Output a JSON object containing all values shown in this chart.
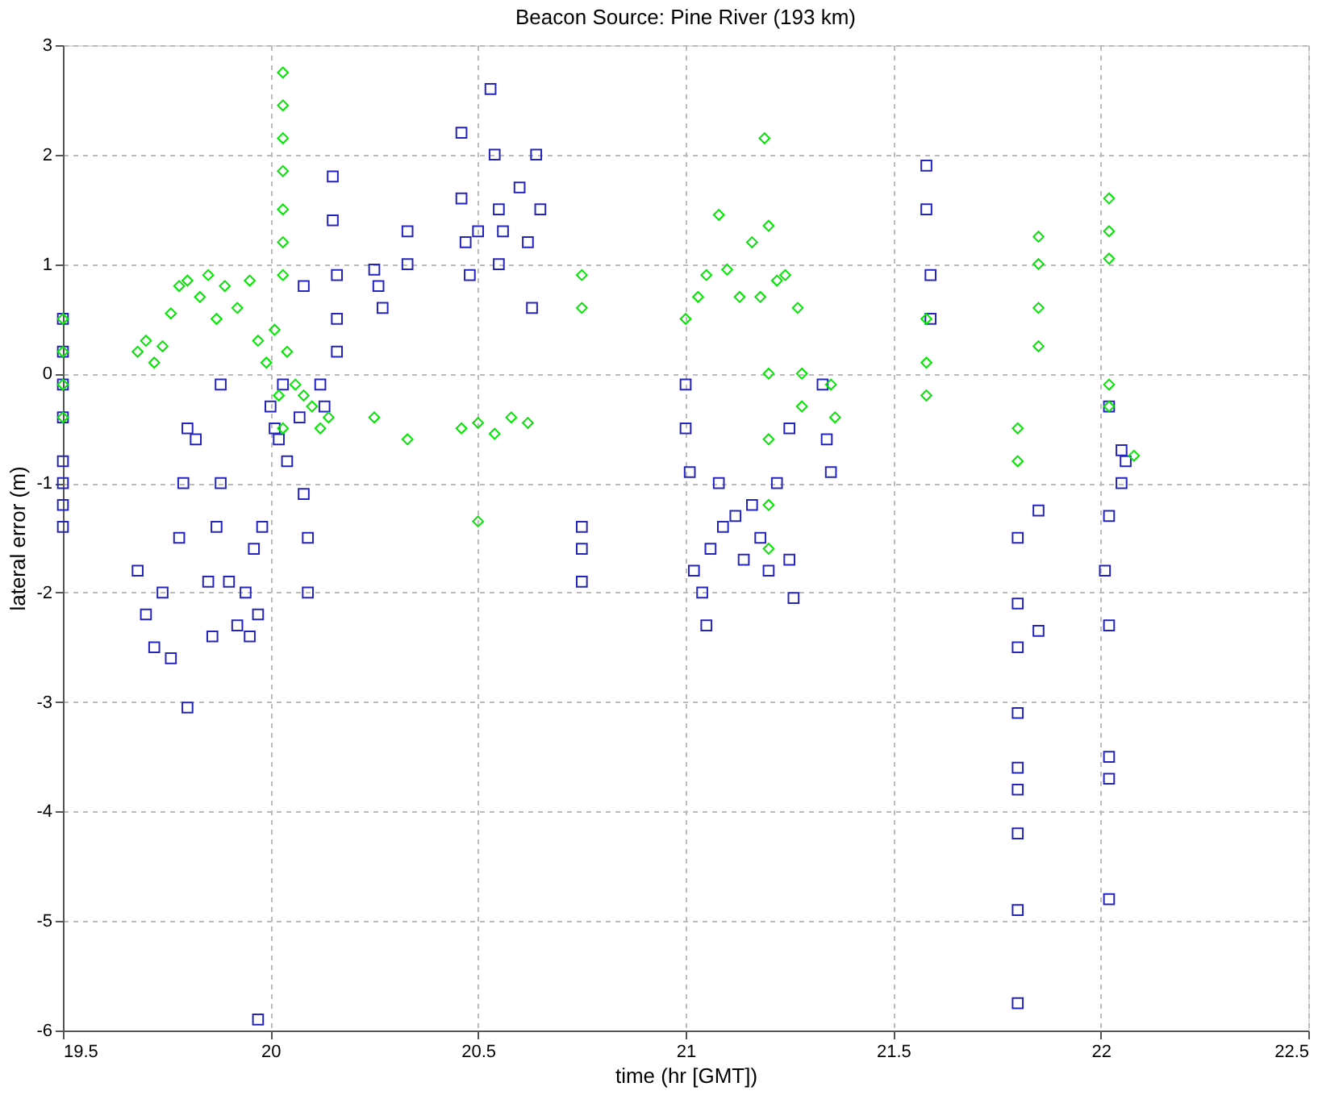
{
  "chart_data": {
    "type": "scatter",
    "title": "Beacon Source: Pine River (193 km)",
    "xlabel": "time (hr [GMT])",
    "ylabel": "lateral error (m)",
    "xlim": [
      19.5,
      22.5
    ],
    "xticks": [
      19.5,
      20,
      20.5,
      21,
      21.5,
      22,
      22.5
    ],
    "ylim": [
      -6,
      3
    ],
    "yticks": [
      -6,
      -5,
      -4,
      -3,
      -2,
      -1,
      0,
      1,
      2,
      3
    ],
    "grid": true,
    "series": [
      {
        "color": "#2323c0",
        "marker": "square",
        "x": [
          19.5,
          19.5,
          19.5,
          19.5,
          19.5,
          19.5,
          19.5,
          19.5,
          19.68,
          19.7,
          19.72,
          19.74,
          19.76,
          19.78,
          19.79,
          19.8,
          19.82,
          19.8,
          19.85,
          19.86,
          19.88,
          19.88,
          19.87,
          19.9,
          19.92,
          19.94,
          19.95,
          19.96,
          19.97,
          19.98,
          19.97,
          20.0,
          20.02,
          20.03,
          20.04,
          20.01,
          20.08,
          20.08,
          20.09,
          20.09,
          20.07,
          20.12,
          20.13,
          20.15,
          20.15,
          20.16,
          20.16,
          20.16,
          20.25,
          20.26,
          20.27,
          20.33,
          20.33,
          20.46,
          20.46,
          20.47,
          20.48,
          20.5,
          20.53,
          20.54,
          20.55,
          20.55,
          20.56,
          20.6,
          20.62,
          20.63,
          20.64,
          20.65,
          20.75,
          20.75,
          20.75,
          21.0,
          21.0,
          21.01,
          21.02,
          21.04,
          21.05,
          21.06,
          21.08,
          21.09,
          21.12,
          21.14,
          21.16,
          21.18,
          21.2,
          21.22,
          21.25,
          21.25,
          21.26,
          21.33,
          21.34,
          21.35,
          21.58,
          21.58,
          21.59,
          21.59,
          21.8,
          21.8,
          21.8,
          21.8,
          21.8,
          21.8,
          21.8,
          21.8,
          21.8,
          21.85,
          21.85,
          22.02,
          22.02,
          22.01,
          22.02,
          22.02,
          22.02,
          22.02,
          22.05,
          22.05,
          22.06
        ],
        "values": [
          0.5,
          0.2,
          -0.1,
          -0.4,
          -0.8,
          -1.0,
          -1.2,
          -1.4,
          -1.8,
          -2.2,
          -2.5,
          -2.0,
          -2.6,
          -1.5,
          -1.0,
          -0.5,
          -0.6,
          -3.05,
          -1.9,
          -2.4,
          -0.1,
          -1.0,
          -1.4,
          -1.9,
          -2.3,
          -2.0,
          -2.4,
          -1.6,
          -2.2,
          -1.4,
          -5.9,
          -0.3,
          -0.6,
          -0.1,
          -0.8,
          -0.5,
          0.8,
          -1.1,
          -1.5,
          -2.0,
          -0.4,
          -0.1,
          -0.3,
          1.8,
          1.4,
          0.9,
          0.5,
          0.2,
          0.95,
          0.8,
          0.6,
          1.3,
          1.0,
          2.2,
          1.6,
          1.2,
          0.9,
          1.3,
          2.6,
          2.0,
          1.5,
          1.0,
          1.3,
          1.7,
          1.2,
          0.6,
          2.0,
          1.5,
          -1.4,
          -1.6,
          -1.9,
          -0.1,
          -0.5,
          -0.9,
          -1.8,
          -2.0,
          -2.3,
          -1.6,
          -1.0,
          -1.4,
          -1.3,
          -1.7,
          -1.2,
          -1.5,
          -1.8,
          -1.0,
          -0.5,
          -1.7,
          -2.05,
          -0.1,
          -0.6,
          -0.9,
          1.9,
          1.5,
          0.9,
          0.5,
          -1.5,
          -2.1,
          -2.5,
          -3.1,
          -3.6,
          -3.8,
          -4.2,
          -4.9,
          -5.75,
          -1.25,
          -2.35,
          -0.3,
          -1.3,
          -1.8,
          -2.3,
          -3.5,
          -3.7,
          -4.8,
          -0.7,
          -1.0,
          -0.8
        ]
      },
      {
        "color": "#00e600",
        "marker": "diamond",
        "x": [
          19.5,
          19.5,
          19.5,
          19.5,
          19.68,
          19.7,
          19.72,
          19.74,
          19.76,
          19.78,
          19.8,
          19.83,
          19.85,
          19.87,
          19.89,
          19.92,
          19.95,
          19.97,
          19.99,
          20.01,
          20.02,
          20.03,
          20.04,
          20.06,
          20.08,
          20.1,
          20.12,
          20.14,
          20.03,
          20.03,
          20.03,
          20.03,
          20.03,
          20.03,
          20.03,
          20.25,
          20.33,
          20.46,
          20.5,
          20.54,
          20.58,
          20.62,
          20.5,
          20.75,
          20.75,
          21.0,
          21.03,
          21.05,
          21.08,
          21.1,
          21.13,
          21.16,
          21.18,
          21.19,
          21.2,
          21.22,
          21.24,
          21.27,
          21.2,
          21.2,
          21.2,
          21.2,
          21.28,
          21.28,
          21.35,
          21.36,
          21.58,
          21.58,
          21.58,
          21.8,
          21.8,
          21.85,
          21.85,
          21.85,
          21.85,
          22.02,
          22.02,
          22.02,
          22.02,
          22.02,
          22.08
        ],
        "values": [
          0.5,
          0.2,
          -0.1,
          -0.4,
          0.2,
          0.3,
          0.1,
          0.25,
          0.55,
          0.8,
          0.85,
          0.7,
          0.9,
          0.5,
          0.8,
          0.6,
          0.85,
          0.3,
          0.1,
          0.4,
          -0.2,
          -0.5,
          0.2,
          -0.1,
          -0.2,
          -0.3,
          -0.5,
          -0.4,
          2.75,
          2.45,
          2.15,
          1.85,
          1.5,
          1.2,
          0.9,
          -0.4,
          -0.6,
          -0.5,
          -0.45,
          -0.55,
          -0.4,
          -0.45,
          -1.35,
          0.9,
          0.6,
          0.5,
          0.7,
          0.9,
          1.45,
          0.95,
          0.7,
          1.2,
          0.7,
          2.15,
          1.35,
          0.85,
          0.9,
          0.6,
          0.0,
          -0.6,
          -1.2,
          -1.6,
          0.0,
          -0.3,
          -0.1,
          -0.4,
          0.5,
          0.1,
          -0.2,
          -0.5,
          -0.8,
          1.25,
          1.0,
          0.6,
          0.25,
          1.6,
          1.3,
          1.05,
          -0.1,
          -0.3,
          -0.75
        ]
      }
    ]
  }
}
